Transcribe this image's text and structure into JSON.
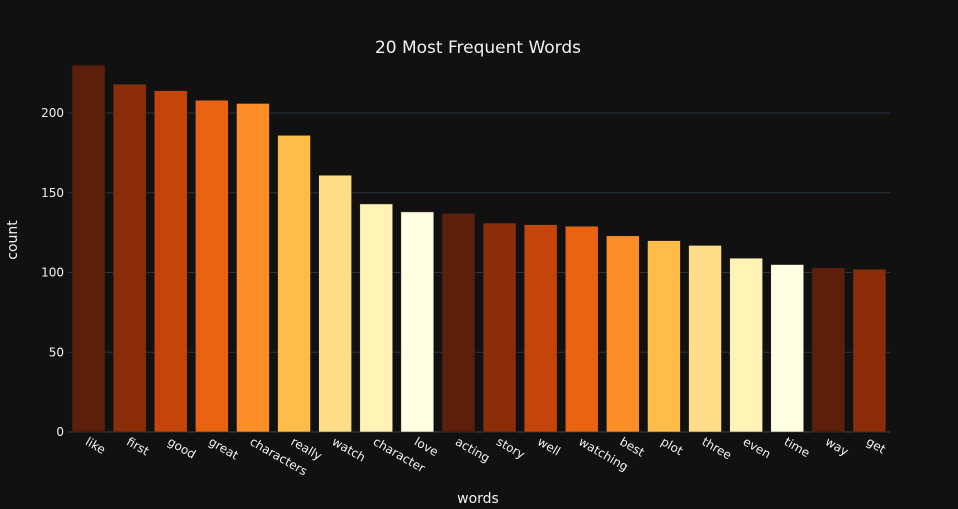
{
  "chart_data": {
    "type": "bar",
    "title": "20 Most Frequent Words",
    "xlabel": "words",
    "ylabel": "count",
    "ylim": [
      0,
      232
    ],
    "yticks": [
      0,
      50,
      100,
      150,
      200
    ],
    "grid": true,
    "categories": [
      "like",
      "first",
      "good",
      "great",
      "characters",
      "really",
      "watch",
      "character",
      "love",
      "acting",
      "story",
      "well",
      "watching",
      "best",
      "plot",
      "three",
      "even",
      "time",
      "way",
      "get"
    ],
    "values": [
      230,
      218,
      214,
      208,
      206,
      186,
      161,
      143,
      138,
      137,
      131,
      130,
      129,
      123,
      120,
      117,
      109,
      105,
      103,
      102
    ],
    "colors": [
      "#5c1f0b",
      "#8b2d08",
      "#c4440a",
      "#e8620f",
      "#fd8d27",
      "#febb47",
      "#fedc88",
      "#fff2b4",
      "#ffffe1",
      "#5c1f0b",
      "#8b2d08",
      "#c4440a",
      "#e8620f",
      "#fd8d27",
      "#febb47",
      "#fedc88",
      "#fff2b4",
      "#ffffe1",
      "#5c1f0b",
      "#8b2d08"
    ]
  },
  "colors": {
    "background": "#111111",
    "gridline": "#283442",
    "text": "#f2f2f2"
  }
}
